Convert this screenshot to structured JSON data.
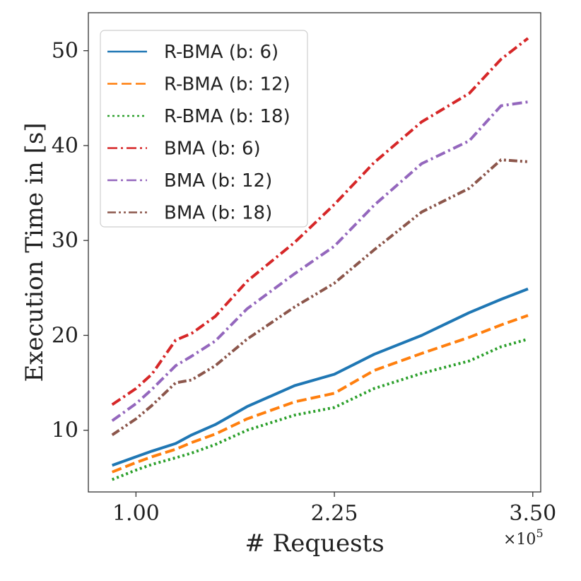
{
  "chart_data": {
    "type": "line",
    "title": "",
    "xlabel": "# Requests",
    "ylabel": "Execution Time in [s]",
    "x_scale_label": "×10",
    "x_scale_exponent": "5",
    "xlim": [
      0.7,
      3.55
    ],
    "ylim": [
      3.5,
      54
    ],
    "x_ticks": [
      1.0,
      2.25,
      3.5
    ],
    "x_tick_labels": [
      "1.00",
      "2.25",
      "3.50"
    ],
    "y_ticks": [
      10,
      20,
      30,
      40,
      50
    ],
    "y_tick_labels": [
      "10",
      "20",
      "30",
      "40",
      "50"
    ],
    "legend_position": "upper-left",
    "grid": false,
    "x": [
      0.85,
      1.0,
      1.1,
      1.25,
      1.35,
      1.5,
      1.7,
      2.0,
      2.25,
      2.5,
      2.8,
      3.1,
      3.3,
      3.47
    ],
    "series": [
      {
        "name": "R-BMA (b: 6)",
        "color": "#1f77b4",
        "style": "solid",
        "values": [
          6.3,
          7.2,
          7.8,
          8.6,
          9.5,
          10.6,
          12.5,
          14.7,
          15.9,
          18.0,
          20.0,
          22.4,
          23.8,
          24.9
        ]
      },
      {
        "name": "R-BMA (b: 12)",
        "color": "#ff7f0e",
        "style": "dashed",
        "values": [
          5.6,
          6.6,
          7.2,
          8.0,
          8.7,
          9.6,
          11.2,
          13.0,
          13.9,
          16.3,
          18.1,
          19.8,
          21.1,
          22.1
        ]
      },
      {
        "name": "R-BMA (b: 18)",
        "color": "#2ca02c",
        "style": "dotted",
        "values": [
          4.8,
          5.8,
          6.4,
          7.1,
          7.6,
          8.5,
          10.0,
          11.6,
          12.4,
          14.4,
          16.0,
          17.3,
          18.8,
          19.6
        ]
      },
      {
        "name": "BMA (b: 6)",
        "color": "#d62728",
        "style": "dashdot",
        "values": [
          12.7,
          14.4,
          15.9,
          19.5,
          20.2,
          22.0,
          25.7,
          29.8,
          33.8,
          38.2,
          42.5,
          45.5,
          49.1,
          51.3
        ]
      },
      {
        "name": "BMA (b: 12)",
        "color": "#9467bd",
        "style": "dashdot",
        "values": [
          11.0,
          12.8,
          14.3,
          16.8,
          17.8,
          19.4,
          22.8,
          26.5,
          29.4,
          33.7,
          38.1,
          40.5,
          44.2,
          44.6
        ]
      },
      {
        "name": "BMA (b: 18)",
        "color": "#8c564b",
        "style": "dashdotdot",
        "values": [
          9.5,
          11.2,
          12.6,
          15.0,
          15.3,
          16.8,
          19.6,
          23.0,
          25.5,
          29.0,
          33.0,
          35.5,
          38.5,
          38.3
        ]
      }
    ]
  }
}
